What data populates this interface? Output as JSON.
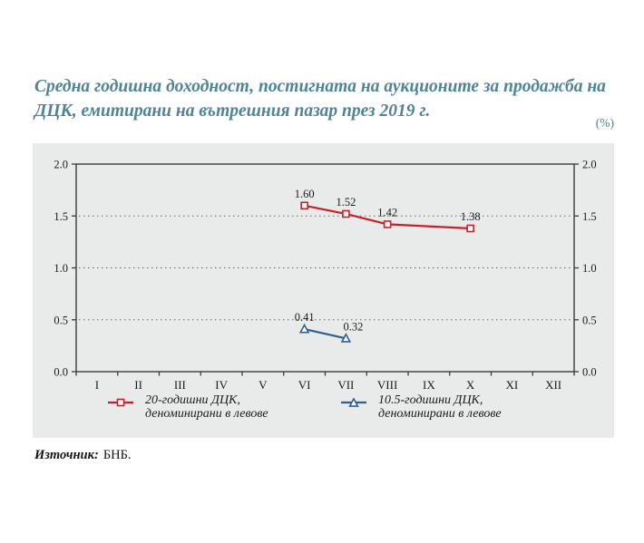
{
  "title": {
    "line1": "Средна годишна доходност, постигната на аукционите за продажба на",
    "line2": "ДЦК, емитирани на вътрешния пазар през 2019 г."
  },
  "unit_label": "(%)",
  "source": {
    "label": "Източник:",
    "value": "БНБ."
  },
  "colors": {
    "title_teal": "#4e8496",
    "panel_bg": "#e9eaea",
    "axis": "#3b3b3b",
    "gridline": "#5a5a5a",
    "text": "#1b1b1b",
    "series_red": "#c8202a",
    "series_blue": "#31608e"
  },
  "chart_data": {
    "type": "line",
    "title": "Средна годишна доходност, постигната на аукционите за продажба на ДЦК, емитирани на вътрешния пазар през 2019 г.",
    "ylabel": "(%)",
    "x_categories": [
      "I",
      "II",
      "III",
      "IV",
      "V",
      "VI",
      "VII",
      "VIII",
      "IX",
      "X",
      "XI",
      "XII"
    ],
    "y_axis": {
      "min": 0.0,
      "max": 2.0,
      "step": 0.5,
      "tick_labels": [
        "0.0",
        "0.5",
        "1.0",
        "1.5",
        "2.0"
      ],
      "gridlines": [
        0.5,
        1.0,
        1.5
      ],
      "grid_style": "dotted",
      "labels_on_both_sides": true
    },
    "legend_position": "bottom",
    "series": [
      {
        "id": "20y-bgn",
        "name": "20-годишни ДЦК, деноминирани в левове",
        "legend_lines": [
          "20-годишни ДЦК,",
          "деноминирани в левове"
        ],
        "color": "#c8202a",
        "marker": "square",
        "points": [
          {
            "month": "VI",
            "value": 1.6,
            "label": "1.60",
            "label_dx": 0
          },
          {
            "month": "VII",
            "value": 1.52,
            "label": "1.52",
            "label_dx": 0
          },
          {
            "month": "VIII",
            "value": 1.42,
            "label": "1.42",
            "label_dx": 0
          },
          {
            "month": "X",
            "value": 1.38,
            "label": "1.38",
            "label_dx": 0
          }
        ]
      },
      {
        "id": "10_5y-bgn",
        "name": "10.5-годишни ДЦК, деноминирани в левове",
        "legend_lines": [
          "10.5-годишни ДЦК,",
          "деноминирани в левове"
        ],
        "color": "#31608e",
        "marker": "triangle",
        "points": [
          {
            "month": "VI",
            "value": 0.41,
            "label": "0.41",
            "label_dx": 0
          },
          {
            "month": "VII",
            "value": 0.32,
            "label": "0.32",
            "label_dx": 8
          }
        ]
      }
    ]
  }
}
